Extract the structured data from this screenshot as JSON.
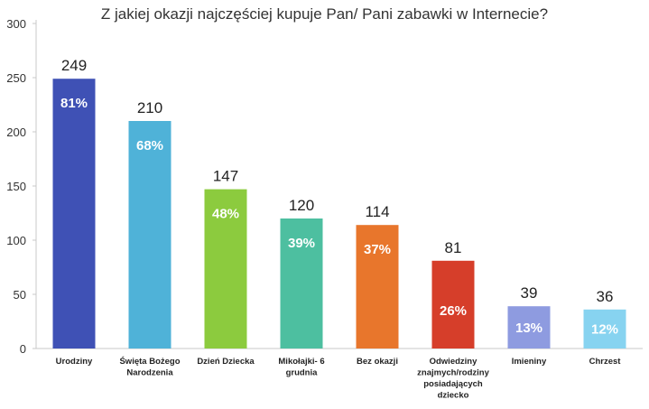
{
  "chart_data": {
    "type": "bar",
    "title": "Z jakiej okazji najczęściej kupuje Pan/ Pani zabawki w Internecie?",
    "xlabel": "",
    "ylabel": "",
    "ylim": [
      0,
      300
    ],
    "yticks": [
      "0",
      "50",
      "100",
      "150",
      "200",
      "250",
      "300"
    ],
    "grid": false,
    "categories": [
      [
        "Urodziny"
      ],
      [
        "Święta Bożego",
        "Narodzenia"
      ],
      [
        "Dzień Dziecka"
      ],
      [
        "Mikołajki- 6",
        "grudnia"
      ],
      [
        "Bez okazji"
      ],
      [
        "Odwiedziny",
        "znajmych/rodziny",
        "posiadających",
        "dziecko"
      ],
      [
        "Imieniny"
      ],
      [
        "Chrzest"
      ]
    ],
    "values": [
      249,
      210,
      147,
      120,
      114,
      81,
      39,
      36
    ],
    "value_labels": [
      "249",
      "210",
      "147",
      "120",
      "114",
      "81",
      "39",
      "36"
    ],
    "percent_labels": [
      "81%",
      "68%",
      "48%",
      "39%",
      "37%",
      "26%",
      "13%",
      "12%"
    ],
    "colors": [
      "#3F51B5",
      "#4FB2D8",
      "#8CCB3E",
      "#4DBFA0",
      "#E8762C",
      "#D63E2A",
      "#8E9BE0",
      "#87D3F0"
    ]
  }
}
